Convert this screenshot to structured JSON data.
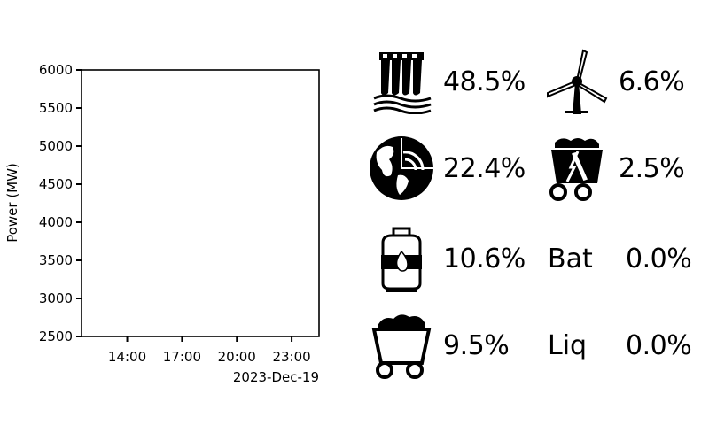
{
  "chart_data": {
    "type": "line",
    "title": "",
    "ylabel": "Power (MW)",
    "xlabel": "2023-Dec-19",
    "ylim": [
      2500,
      6000
    ],
    "yticks": [
      2500,
      3000,
      3500,
      4000,
      4500,
      5000,
      5500,
      6000
    ],
    "ytick_labels": [
      "2500",
      "3000",
      "3500",
      "4000",
      "4500",
      "5000",
      "5500",
      "6000"
    ],
    "xlim": [
      11.5,
      24.5
    ],
    "xticks": [
      14,
      17,
      20,
      23
    ],
    "xtick_labels": [
      "14:00",
      "17:00",
      "20:00",
      "23:00"
    ],
    "grid": false,
    "series": []
  },
  "generation_mix": [
    {
      "source": "hydro",
      "icon": "hydro-dam-icon",
      "percent": "48.5%"
    },
    {
      "source": "wind",
      "icon": "wind-turbine-icon",
      "percent": "6.6%"
    },
    {
      "source": "geothermal",
      "icon": "geothermal-earth-icon",
      "percent": "22.4%"
    },
    {
      "source": "biomass",
      "icon": "biomass-cart-icon",
      "percent": "2.5%"
    },
    {
      "source": "gas",
      "icon": "gas-cylinder-icon",
      "percent": "10.6%"
    },
    {
      "source": "battery",
      "code": "Bat",
      "percent": "0.0%"
    },
    {
      "source": "coal",
      "icon": "coal-cart-icon",
      "percent": "9.5%"
    },
    {
      "source": "liquid",
      "code": "Liq",
      "percent": "0.0%"
    }
  ]
}
